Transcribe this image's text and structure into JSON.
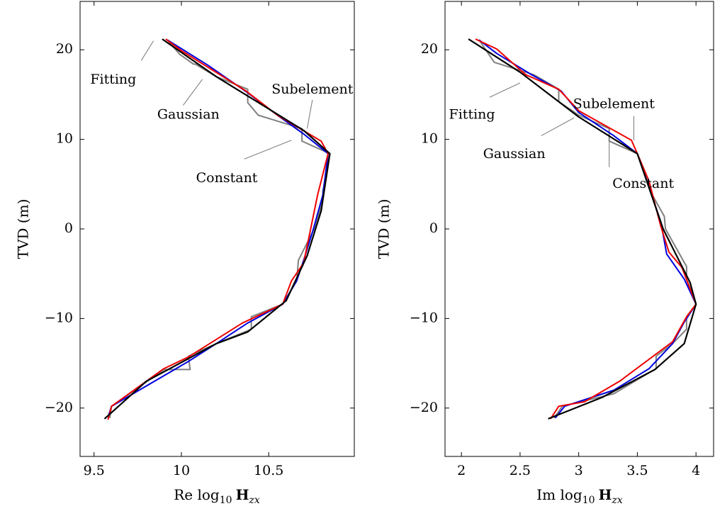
{
  "chart_data": [
    {
      "type": "line",
      "xlabel": "Re log₁₀ H_zx",
      "xlabel_parts": {
        "prefix": "Re log",
        "sub": "10",
        "bold": "H",
        "italic_sub": "zx"
      },
      "ylabel": "TVD (m)",
      "xlim": [
        9.42,
        10.99
      ],
      "ylim": [
        -25.4,
        25.4
      ],
      "xticks": [
        9.5,
        10,
        10.5
      ],
      "xtick_labels": [
        "9.5",
        "10",
        "10.5"
      ],
      "yticks": [
        20,
        10,
        0,
        -10,
        -20
      ],
      "ytick_labels": [
        "20",
        "10",
        "0",
        "−10",
        "−20"
      ],
      "grid": false,
      "series": [
        {
          "name": "Fitting",
          "color": "#000000",
          "x": [
            9.89,
            10.2,
            10.7,
            10.85,
            10.8,
            10.72,
            10.6,
            10.38,
            10.2,
            9.8,
            9.56
          ],
          "y": [
            21.2,
            17,
            11,
            8.4,
            2,
            -3,
            -8,
            -11.5,
            -12.8,
            -17,
            -21.2
          ]
        },
        {
          "name": "Gaussian",
          "color": "#0000dd",
          "x": [
            9.92,
            10.15,
            10.38,
            10.55,
            10.7,
            10.84,
            10.81,
            10.75,
            10.7,
            10.66,
            10.58,
            10.38,
            10.2,
            10.04,
            9.6,
            9.58
          ],
          "y": [
            21.1,
            18.3,
            15.2,
            12.7,
            10.6,
            8.4,
            3.8,
            -0.4,
            -3.5,
            -5.8,
            -8.4,
            -10.5,
            -12.8,
            -14.8,
            -19.8,
            -21
          ],
          "label_pos": [
            10.04,
            12.7
          ]
        },
        {
          "name": "Subelement",
          "color": "#ee0000",
          "x": [
            9.91,
            10.0,
            10.37,
            10.55,
            10.8,
            10.84,
            10.78,
            10.74,
            10.7,
            10.63,
            10.58,
            10.35,
            10.04,
            9.9,
            9.6,
            9.58
          ],
          "y": [
            21.2,
            19.9,
            15.4,
            12.7,
            9.8,
            8.4,
            3.8,
            0,
            -3.8,
            -5.8,
            -8.4,
            -10.5,
            -14.3,
            -15.6,
            -19.8,
            -21.3
          ],
          "label_pos": [
            10.75,
            15.5
          ]
        },
        {
          "name": "Constant",
          "color": "#808080",
          "x": [
            9.92,
            9.99,
            10.07,
            10.08,
            10.2,
            10.38,
            10.38,
            10.44,
            10.69,
            10.69,
            10.85,
            10.81,
            10.81,
            10.76,
            10.75,
            10.67,
            10.66,
            10.58,
            10.4,
            10.4,
            10.2,
            10.04,
            10.05,
            9.9,
            9.6,
            9.59
          ],
          "y": [
            21.1,
            19.5,
            18.4,
            18.4,
            17,
            15.6,
            14.1,
            12.7,
            11.2,
            9.8,
            8.4,
            4.2,
            3.2,
            0,
            -0.4,
            -3.5,
            -5.8,
            -8.4,
            -9.8,
            -11.2,
            -12.8,
            -14.2,
            -15.7,
            -15.7,
            -19.8,
            -21.1
          ],
          "label_pos": [
            10.26,
            5.6
          ]
        }
      ],
      "annotations": [
        {
          "text": "Fitting",
          "color": "#000000",
          "text_at": [
            9.61,
            16.6
          ],
          "pointer": [
            [
              9.77,
              18.8
            ],
            [
              9.84,
              21
            ]
          ],
          "pointer_color": "#808080"
        },
        {
          "text": "Gaussian",
          "color": "#0000dd",
          "text_at": [
            10.04,
            12.7
          ],
          "pointer": [
            [
              10.01,
              13.8
            ],
            [
              10.12,
              16.7
            ]
          ],
          "pointer_color": "#808080"
        },
        {
          "text": "Subelement",
          "color": "#ee0000",
          "text_at": [
            10.75,
            15.5
          ],
          "pointer": [
            [
              10.75,
              14.4
            ],
            [
              10.72,
              11.2
            ]
          ],
          "pointer_color": "#808080"
        },
        {
          "text": "Constant",
          "color": "#808080",
          "text_at": [
            10.26,
            5.6
          ],
          "pointer": [
            [
              10.36,
              7.8
            ],
            [
              10.63,
              9.9
            ]
          ],
          "pointer_color": "#808080"
        }
      ]
    },
    {
      "type": "line",
      "xlabel": "Im log₁₀ H_zx",
      "xlabel_parts": {
        "prefix": "Im log",
        "sub": "10",
        "bold": "H",
        "italic_sub": "zx"
      },
      "ylabel": "TVD (m)",
      "xlim": [
        1.86,
        4.15
      ],
      "ylim": [
        -25.4,
        25.4
      ],
      "xticks": [
        2,
        2.5,
        3,
        3.5,
        4
      ],
      "xtick_labels": [
        "2",
        "2.5",
        "3",
        "3.5",
        "4"
      ],
      "yticks": [
        20,
        10,
        0,
        -10,
        -20
      ],
      "ytick_labels": [
        "20",
        "10",
        "0",
        "−10",
        "−20"
      ],
      "grid": false,
      "series": [
        {
          "name": "Fitting",
          "color": "#000000",
          "x": [
            2.06,
            2.5,
            3.0,
            3.5,
            3.72,
            3.95,
            4.0,
            3.9,
            3.65,
            3.2,
            2.74
          ],
          "y": [
            21.2,
            17.5,
            12.5,
            8.4,
            0,
            -6,
            -8.4,
            -12.8,
            -15.7,
            -18.8,
            -21.2
          ]
        },
        {
          "name": "Gaussian",
          "color": "#0000dd",
          "x": [
            2.15,
            2.3,
            2.6,
            2.85,
            3.0,
            3.3,
            3.5,
            3.58,
            3.7,
            3.75,
            3.9,
            4.0,
            3.9,
            3.8,
            3.6,
            3.3,
            2.88,
            2.8
          ],
          "y": [
            21.1,
            19.6,
            17.2,
            15.4,
            13,
            10.4,
            8.4,
            5.4,
            0.8,
            -2.8,
            -5.6,
            -8.4,
            -10.4,
            -12.8,
            -15.6,
            -18,
            -19.8,
            -21.1
          ],
          "label_pos": [
            2.45,
            8.3
          ]
        },
        {
          "name": "Subelement",
          "color": "#ee0000",
          "x": [
            2.12,
            2.3,
            2.55,
            2.83,
            3.0,
            3.45,
            3.5,
            3.6,
            3.7,
            3.77,
            3.88,
            4.0,
            3.92,
            3.8,
            3.35,
            3.05,
            2.83,
            2.76
          ],
          "y": [
            21.2,
            20.1,
            17.2,
            15.6,
            13.2,
            9.9,
            8.4,
            5.3,
            0.3,
            -2.6,
            -4.3,
            -8.4,
            -9.8,
            -12.6,
            -17,
            -19.3,
            -19.8,
            -21.2
          ],
          "label_pos": [
            3.3,
            13.9
          ]
        },
        {
          "name": "Constant",
          "color": "#808080",
          "x": [
            2.15,
            2.28,
            2.62,
            2.83,
            2.83,
            3.0,
            3.26,
            3.26,
            3.5,
            3.59,
            3.61,
            3.73,
            3.74,
            3.92,
            3.92,
            4.0,
            3.92,
            3.92,
            3.8,
            3.66,
            3.66,
            3.3,
            2.86,
            2.79
          ],
          "y": [
            21.1,
            18.6,
            17.2,
            15.6,
            14.2,
            12.7,
            11.2,
            9.8,
            8.4,
            5.6,
            4.2,
            1.4,
            0,
            -4.2,
            -5.6,
            -8.4,
            -9.8,
            -11.2,
            -12.8,
            -14.2,
            -15.6,
            -18.4,
            -19.8,
            -21.1
          ],
          "label_pos": [
            3.55,
            5
          ]
        }
      ],
      "annotations": [
        {
          "text": "Fitting",
          "color": "#000000",
          "text_at": [
            2.09,
            12.7
          ],
          "pointer": [
            [
              2.24,
              14.7
            ],
            [
              2.5,
              16.3
            ]
          ],
          "pointer_color": "#808080"
        },
        {
          "text": "Gaussian",
          "color": "#0000dd",
          "text_at": [
            2.45,
            8.3
          ],
          "pointer": [
            [
              2.68,
              10.4
            ],
            [
              2.96,
              12.4
            ]
          ],
          "pointer_color": "#808080"
        },
        {
          "text": "Subelement",
          "color": "#ee0000",
          "text_at": [
            3.3,
            13.9
          ],
          "pointer": [
            [
              3.47,
              12.6
            ],
            [
              3.47,
              9.9
            ]
          ],
          "pointer_color": "#808080"
        },
        {
          "text": "Constant",
          "color": "#808080",
          "text_at": [
            3.55,
            5
          ],
          "pointer": [
            [
              3.26,
              6.9
            ],
            [
              3.26,
              9.8
            ]
          ],
          "pointer_color": "#808080"
        }
      ]
    }
  ]
}
